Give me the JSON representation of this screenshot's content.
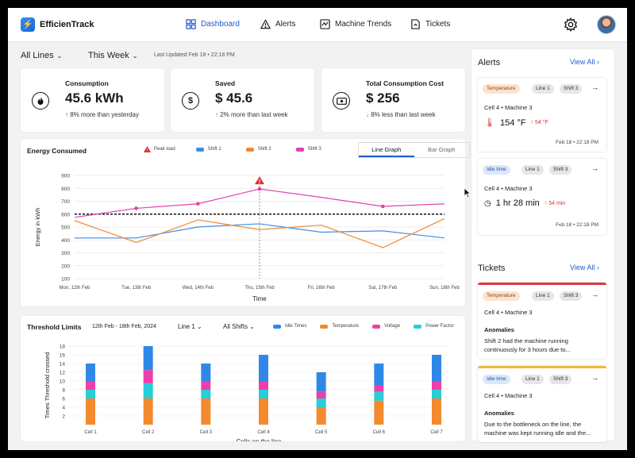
{
  "app": {
    "name": "EfficienTrack"
  },
  "nav": {
    "dashboard": "Dashboard",
    "alerts": "Alerts",
    "machine_trends": "Machine Trends",
    "tickets": "Tickets"
  },
  "filters": {
    "lines": "All Lines",
    "period": "This Week",
    "updated": "Last Updated Feb 18 • 22:18 PM"
  },
  "kpis": [
    {
      "label": "Consumption",
      "value": "45.6 kWh",
      "note": "8% more than yesterday",
      "icon": "flame-icon"
    },
    {
      "label": "Saved",
      "value": "$ 45.6",
      "note": "2% more than last week",
      "icon": "dollar-icon"
    },
    {
      "label": "Total Consumption Cost",
      "value": "$ 256",
      "note": "8% less than last week",
      "icon": "cash-icon"
    }
  ],
  "colors": {
    "shift1": "#3d8fe6",
    "shift2": "#ee8a35",
    "shift3": "#e23fb0",
    "idle": "#2f88e8",
    "temperature": "#f28a2e",
    "voltage": "#ee3fa8",
    "power": "#27cdd8",
    "accent": "#1f5ad0"
  },
  "energy": {
    "title": "Energy Consumed",
    "legend": {
      "peak": "Peak load",
      "shift1": "Shift 1",
      "shift2": "Shift 2",
      "shift3": "Shift 3"
    },
    "toggle": {
      "line": "Line Graph",
      "bar": "Bar Graph"
    },
    "xlabel": "Time",
    "ylabel": "Energy in kWh"
  },
  "threshold": {
    "title": "Threshold Limits",
    "range": "12th Feb - 18th Feb, 2024",
    "line": "Line 1",
    "shifts": "All Shifts",
    "legend": {
      "idle": "Idle Times",
      "temperature": "Temperature",
      "voltage": "Voltage",
      "power": "Power Factor"
    },
    "xlabel": "Cells on the line",
    "ylabel": "Times Threshold crossed"
  },
  "chart_data": [
    {
      "type": "line",
      "title": "Energy Consumed",
      "xlabel": "Time",
      "ylabel": "Energy in kWh",
      "ylim": [
        100,
        900
      ],
      "yticks": [
        100,
        200,
        300,
        400,
        500,
        600,
        700,
        800,
        900
      ],
      "categories": [
        "Mon, 12th Feb",
        "Tue, 13th Feb",
        "Wed, 14th Feb",
        "Thu, 15th Feb",
        "Fri, 16th Feb",
        "Sat, 17th Feb",
        "Sun, 18th Feb"
      ],
      "series": [
        {
          "name": "Shift 1",
          "values": [
            415,
            415,
            500,
            525,
            460,
            470,
            415
          ]
        },
        {
          "name": "Shift 2",
          "values": [
            550,
            380,
            555,
            480,
            515,
            340,
            565
          ]
        },
        {
          "name": "Shift 3",
          "values": [
            575,
            645,
            680,
            795,
            730,
            660,
            680
          ]
        }
      ],
      "threshold": 600,
      "peak": {
        "category": "Thu, 15th Feb",
        "value": 795,
        "label": "Peak load"
      },
      "grid": true,
      "legend": "top"
    },
    {
      "type": "bar",
      "stacked": true,
      "title": "Threshold Limits",
      "xlabel": "Cells on the line",
      "ylabel": "Times Threshold crossed",
      "ylim": [
        0,
        18
      ],
      "yticks": [
        2,
        4,
        6,
        8,
        10,
        12,
        14,
        16,
        18
      ],
      "categories": [
        "Cell 1",
        "Cell 2",
        "Cell 3",
        "Cell 4",
        "Cell 5",
        "Cell 6",
        "Cell 7"
      ],
      "series": [
        {
          "name": "Temperature",
          "values": [
            6,
            6,
            6,
            6,
            4,
            5.5,
            6
          ]
        },
        {
          "name": "Power Factor",
          "values": [
            2,
            3.5,
            2,
            2,
            2,
            2,
            2
          ]
        },
        {
          "name": "Voltage",
          "values": [
            2,
            3,
            2,
            2,
            1.5,
            1.5,
            2
          ]
        },
        {
          "name": "Idle Times",
          "values": [
            4,
            5.5,
            4,
            6,
            4.5,
            5,
            6
          ]
        }
      ],
      "legend": "top"
    }
  ],
  "alerts": {
    "title": "Alerts",
    "view_all": "View All",
    "items": [
      {
        "tags": [
          "Temperature",
          "Line 1",
          "Shift 3"
        ],
        "location": "Cell 4 • Machine 3",
        "value": "154 °F",
        "delta": "54 °F",
        "time": "Feb 18 • 22:18 PM"
      },
      {
        "tags": [
          "Idle time",
          "Line 1",
          "Shift 3"
        ],
        "location": "Cell 4 • Machine 3",
        "value": "1 hr 28 min",
        "delta": "54 min",
        "time": "Feb 18 • 22:18 PM"
      }
    ]
  },
  "tickets": {
    "title": "Tickets",
    "view_all": "View All",
    "items": [
      {
        "tags": [
          "Temperature",
          "Line 1",
          "Shift 3"
        ],
        "location": "Cell 4 • Machine 3",
        "heading": "Anomalies",
        "text": "Shift 2 had the machine running continuously for 3 hours due to...",
        "color": "#d83a3a"
      },
      {
        "tags": [
          "Idle time",
          "Line 1",
          "Shift 3"
        ],
        "location": "Cell 4 • Machine 3",
        "heading": "Anomalies",
        "text": "Due to the bottleneck on the line, the machine was kept running idle and the...",
        "color": "#f0b73a"
      }
    ]
  }
}
